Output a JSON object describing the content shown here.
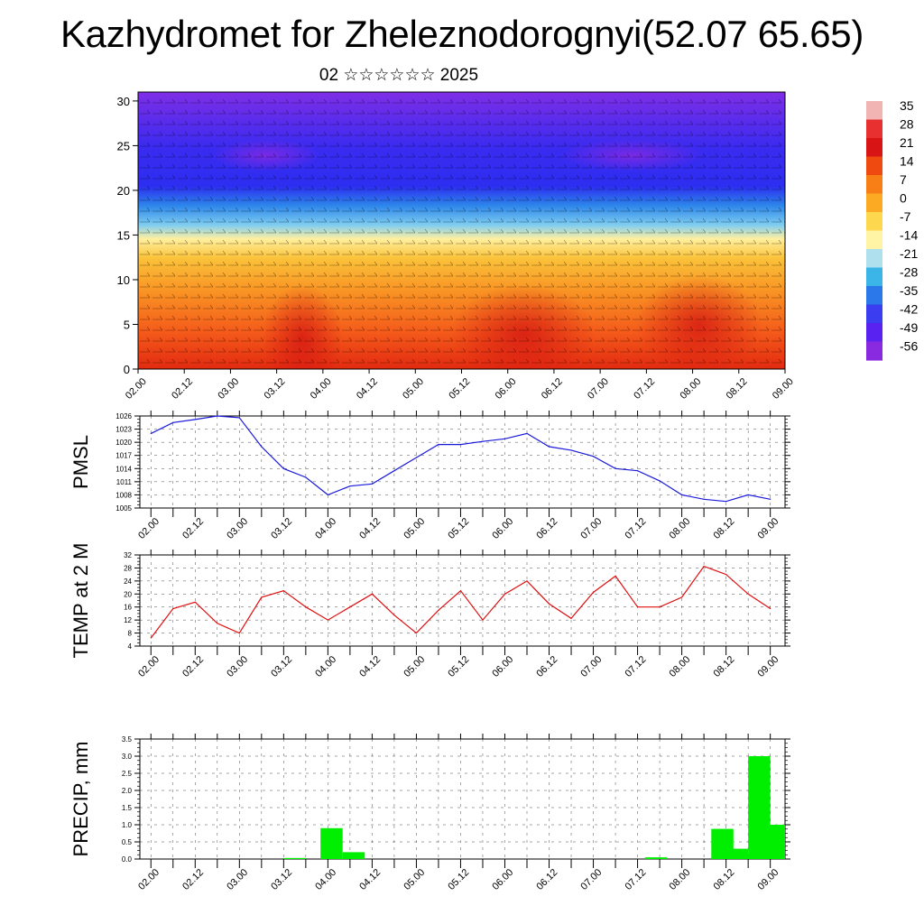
{
  "title": "Kazhydromet for Zheleznodorognyi(52.07 65.65)",
  "subtitle": "02 ☆☆☆☆☆☆ 2025",
  "time_labels": [
    "02.00",
    "02.12",
    "03.00",
    "03.12",
    "04.00",
    "04.12",
    "05.00",
    "05.12",
    "06.00",
    "06.12",
    "07.00",
    "07.12",
    "08.00",
    "08.12",
    "09.00"
  ],
  "colorbar": {
    "labels": [
      "35",
      "28",
      "21",
      "14",
      "7",
      "0",
      "-7",
      "-14",
      "-21",
      "-28",
      "-35",
      "-42",
      "-49",
      "-56"
    ],
    "colors": [
      "#f2b3b3",
      "#e83030",
      "#d81414",
      "#ef4a0f",
      "#f77f16",
      "#fcaa24",
      "#fdd84e",
      "#fff4a6",
      "#aee0ee",
      "#3bb4e8",
      "#2a78ea",
      "#3a3ef0",
      "#5a22f0",
      "#8a2ae0"
    ]
  },
  "chart_data": [
    {
      "name": "vertical-temperature-section",
      "type": "heatmap",
      "yticks": [
        0,
        5,
        10,
        15,
        20,
        25,
        30
      ],
      "ylim": [
        0,
        31
      ],
      "xlim": [
        0,
        84
      ],
      "x_categories": [
        "02.00",
        "02.12",
        "03.00",
        "03.12",
        "04.00",
        "04.12",
        "05.00",
        "05.12",
        "06.00",
        "06.12",
        "07.00",
        "07.12",
        "08.00",
        "08.12",
        "09.00"
      ],
      "zlim": [
        -56,
        35
      ]
    },
    {
      "name": "pmsl",
      "type": "line",
      "ylabel": "PMSL",
      "ylim": [
        1005,
        1026
      ],
      "yticks": [
        1005,
        1008,
        1011,
        1014,
        1017,
        1020,
        1023,
        1026
      ],
      "color": "#1a1adb",
      "x_hours": [
        0,
        3,
        6,
        9,
        12,
        15,
        18,
        21,
        24,
        27,
        30,
        33,
        36,
        39,
        42,
        45,
        48,
        51,
        54,
        57,
        60,
        63,
        66,
        69,
        72,
        75,
        78,
        81,
        84
      ],
      "values": [
        1022,
        1024.5,
        1025.2,
        1026,
        1025.6,
        1019,
        1014,
        1012,
        1008,
        1010,
        1010.5,
        1013.5,
        1016.5,
        1019.5,
        1019.5,
        1020.2,
        1020.8,
        1022,
        1019,
        1018.2,
        1016.8,
        1014,
        1013.5,
        1011.2,
        1008,
        1007,
        1006.5,
        1008,
        1007
      ]
    },
    {
      "name": "temp-2m",
      "type": "line",
      "ylabel": "TEMP at 2 M",
      "ylim": [
        4,
        32
      ],
      "yticks": [
        4,
        8,
        12,
        16,
        20,
        24,
        28,
        32
      ],
      "color": "#e01010",
      "x_hours": [
        0,
        3,
        6,
        9,
        12,
        15,
        18,
        21,
        24,
        27,
        30,
        33,
        36,
        39,
        42,
        45,
        48,
        51,
        54,
        57,
        60,
        63,
        66,
        69,
        72,
        75,
        78,
        81,
        84
      ],
      "values": [
        6.5,
        15.5,
        17.5,
        11,
        8,
        19,
        21,
        16,
        12,
        16,
        20,
        13.5,
        8,
        15,
        21,
        12,
        20,
        24,
        17,
        12.5,
        20.5,
        25.5,
        16,
        16,
        19,
        28.5,
        26,
        20,
        15.5
      ]
    },
    {
      "name": "precip",
      "type": "bar",
      "ylabel": "PRECIP, mm",
      "ylim": [
        0,
        3.5
      ],
      "yticks": [
        "0.0",
        "0.5",
        "1.0",
        "1.5",
        "2.0",
        "2.5",
        "3.0",
        "3.5"
      ],
      "color": "#00ee00",
      "bars": [
        {
          "x": 19.5,
          "value": 0.03
        },
        {
          "x": 24.5,
          "value": 0.9
        },
        {
          "x": 27.5,
          "value": 0.2
        },
        {
          "x": 68.5,
          "value": 0.05
        },
        {
          "x": 77.5,
          "value": 0.88
        },
        {
          "x": 79.5,
          "value": 0.3
        },
        {
          "x": 82.5,
          "value": 3.0
        },
        {
          "x": 84.5,
          "value": 1.0
        }
      ]
    }
  ]
}
